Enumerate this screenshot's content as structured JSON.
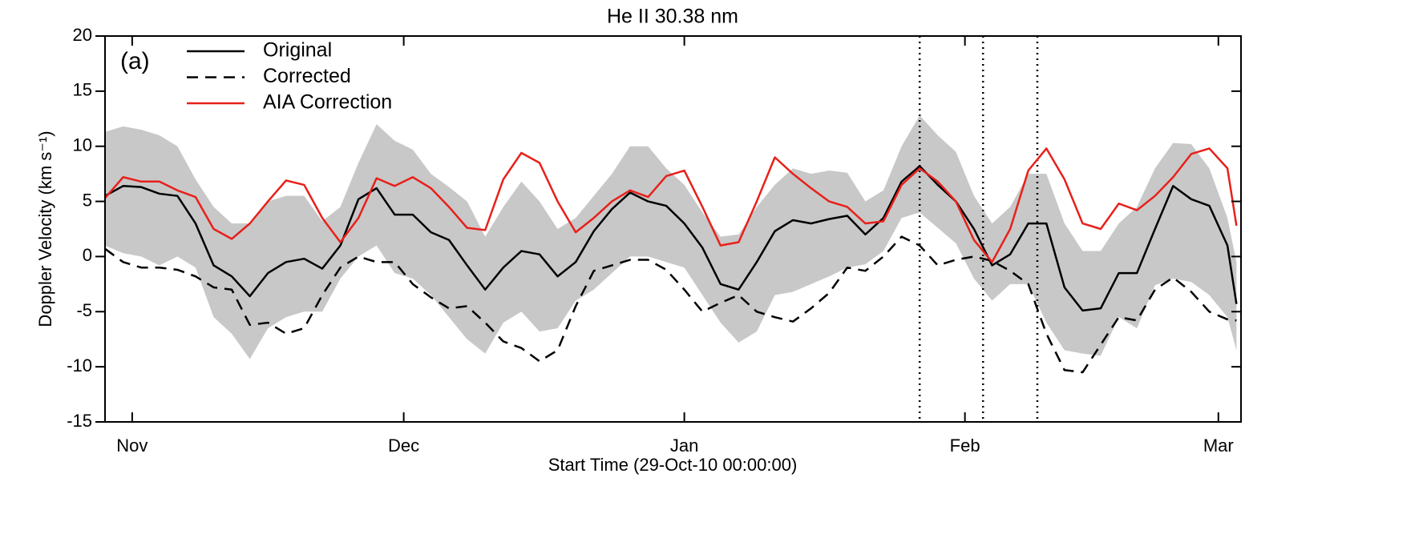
{
  "chart_data": {
    "type": "line",
    "title": "He II  30.38 nm",
    "annotation": "(a)",
    "xlabel": "Start Time (29-Oct-10 00:00:00)",
    "ylabel": "Doppler Velocity (km s⁻¹)",
    "x": [
      0,
      2,
      4,
      6,
      8,
      10,
      12,
      14,
      16,
      18,
      20,
      22,
      24,
      26,
      28,
      30,
      32,
      34,
      36,
      38,
      40,
      42,
      44,
      46,
      48,
      50,
      52,
      54,
      56,
      58,
      60,
      62,
      64,
      66,
      68,
      70,
      72,
      74,
      76,
      78,
      80,
      82,
      84,
      86,
      88,
      90,
      92,
      94,
      96,
      98,
      100,
      102,
      104,
      106,
      108,
      110,
      112,
      114,
      116,
      118,
      120,
      122,
      124,
      125
    ],
    "xlim": [
      0,
      125.5
    ],
    "xticks": [
      {
        "value": 3,
        "label": "Nov"
      },
      {
        "value": 33,
        "label": "Dec"
      },
      {
        "value": 64,
        "label": "Jan"
      },
      {
        "value": 95,
        "label": "Feb"
      },
      {
        "value": 123,
        "label": "Mar"
      }
    ],
    "ylim": [
      -15,
      20
    ],
    "yticks": [
      -15,
      -10,
      -5,
      0,
      5,
      10,
      15,
      20
    ],
    "vlines": [
      90,
      97,
      103
    ],
    "legend": "upper left",
    "band": {
      "color": "#c8c8c8",
      "upper": [
        11.3,
        11.8,
        11.5,
        11.0,
        10.0,
        7.0,
        4.5,
        3.0,
        3.0,
        5.0,
        5.5,
        5.5,
        3.2,
        4.5,
        8.5,
        12.0,
        10.5,
        9.7,
        7.5,
        6.3,
        5.0,
        1.8,
        4.5,
        6.8,
        5.0,
        2.5,
        3.5,
        5.5,
        7.5,
        10.0,
        10.0,
        8.0,
        6.5,
        4.0,
        1.8,
        2.0,
        4.5,
        6.5,
        8.0,
        7.5,
        7.8,
        7.6,
        5.0,
        6.0,
        10.0,
        12.8,
        11.0,
        9.5,
        5.5,
        3.0,
        4.5,
        7.5,
        7.5,
        3.0,
        0.5,
        0.5,
        3.0,
        4.5,
        8.0,
        10.3,
        10.2,
        8.0,
        3.5,
        -0.5
      ],
      "lower": [
        1.0,
        0.3,
        0.0,
        -0.8,
        0,
        -1.0,
        -5.5,
        -7.0,
        -9.3,
        -6.5,
        -5.5,
        -5.0,
        -5.0,
        -2.0,
        0.0,
        1.0,
        -1.5,
        -2.0,
        -3.5,
        -5.5,
        -7.5,
        -8.8,
        -6.0,
        -5.0,
        -6.8,
        -6.5,
        -4.0,
        -3.0,
        -1.5,
        0.0,
        0.0,
        -0.5,
        -1.0,
        -3.5,
        -6.0,
        -7.8,
        -6.8,
        -3.5,
        -3.2,
        -2.5,
        -1.8,
        -1.0,
        -0.7,
        0.5,
        3.5,
        4.0,
        2.6,
        1.2,
        -2.0,
        -4.0,
        -2.5,
        -2.5,
        -6.0,
        -8.5,
        -8.8,
        -9.0,
        -5.5,
        -6.5,
        -2.6,
        -2.0,
        -2.3,
        -3.5,
        -5.5,
        -8.5
      ]
    },
    "series": [
      {
        "name": "Original",
        "color": "#000000",
        "dash": false,
        "values": [
          5.5,
          6.4,
          6.3,
          5.7,
          5.5,
          3.0,
          -0.8,
          -1.8,
          -3.6,
          -1.5,
          -0.5,
          -0.2,
          -1.1,
          1.0,
          5.2,
          6.2,
          3.8,
          3.8,
          2.2,
          1.5,
          -0.8,
          -3.0,
          -1.0,
          0.5,
          0.2,
          -1.8,
          -0.5,
          2.3,
          4.3,
          5.8,
          5.0,
          4.6,
          3.0,
          0.8,
          -2.5,
          -3.0,
          -0.5,
          2.3,
          3.3,
          3.0,
          3.4,
          3.7,
          2.0,
          3.5,
          6.8,
          8.2,
          6.5,
          5.0,
          2.5,
          -0.8,
          0.2,
          3.0,
          3.0,
          -2.8,
          -4.9,
          -4.7,
          -1.5,
          -1.5,
          2.5,
          6.4,
          5.2,
          4.6,
          1.0,
          -4.3
        ]
      },
      {
        "name": "Corrected",
        "color": "#000000",
        "dash": true,
        "values": [
          0.7,
          -0.5,
          -1.0,
          -1.0,
          -1.2,
          -1.8,
          -2.8,
          -3.0,
          -6.2,
          -6.0,
          -7.0,
          -6.5,
          -3.5,
          -1.0,
          0.0,
          -0.5,
          -0.5,
          -2.5,
          -3.7,
          -4.7,
          -4.5,
          -6.0,
          -7.7,
          -8.3,
          -9.5,
          -8.5,
          -4.5,
          -1.3,
          -0.8,
          -0.3,
          -0.3,
          -1.2,
          -3.0,
          -5.0,
          -4.2,
          -3.5,
          -5.0,
          -5.5,
          -5.9,
          -4.7,
          -3.3,
          -1.0,
          -1.3,
          0.0,
          1.8,
          1.0,
          -0.8,
          -0.3,
          0.0,
          -0.4,
          -1.3,
          -2.5,
          -7.0,
          -10.3,
          -10.5,
          -8.0,
          -5.5,
          -5.8,
          -3.0,
          -1.9,
          -3.2,
          -5.0,
          -5.7,
          -5.8
        ]
      },
      {
        "name": "AIA Correction",
        "color": "#e8201a",
        "dash": false,
        "values": [
          5.3,
          7.2,
          6.8,
          6.8,
          6.0,
          5.4,
          2.5,
          1.6,
          3.0,
          5.0,
          6.9,
          6.5,
          3.5,
          1.3,
          3.5,
          7.1,
          6.4,
          7.2,
          6.2,
          4.5,
          2.6,
          2.4,
          7.0,
          9.4,
          8.5,
          5.0,
          2.2,
          3.5,
          5.0,
          6.0,
          5.4,
          7.3,
          7.8,
          4.5,
          1.0,
          1.3,
          5.0,
          9.0,
          7.5,
          6.2,
          5.0,
          4.5,
          3.0,
          3.2,
          6.5,
          8.0,
          6.8,
          5.0,
          1.5,
          -0.5,
          2.5,
          7.8,
          9.8,
          7.0,
          3.0,
          2.5,
          4.8,
          4.2,
          5.5,
          7.2,
          9.3,
          9.8,
          8.0,
          2.8
        ]
      }
    ]
  }
}
